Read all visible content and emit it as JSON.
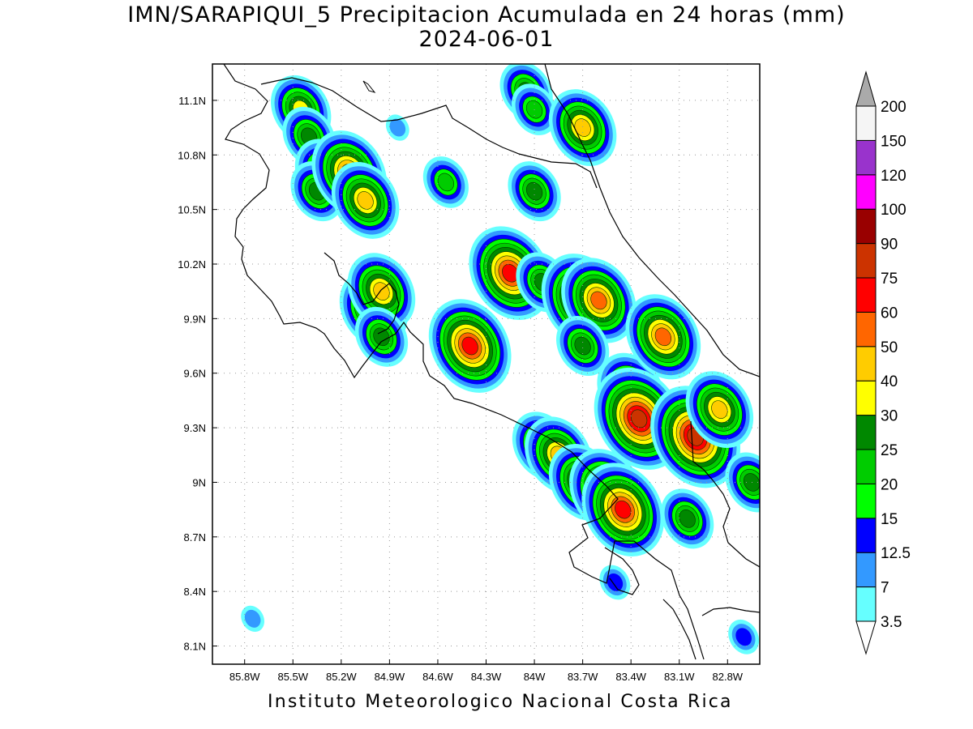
{
  "title": "IMN/SARAPIQUI_5 Precipitacion Acumulada en 24 horas (mm)",
  "date": "2024-06-01",
  "footer": "Instituto Meteorologico Nacional Costa Rica",
  "map": {
    "lon_range": [
      -86.0,
      -82.6
    ],
    "lat_range": [
      8.0,
      11.3
    ],
    "lat_ticks": [
      "11.1N",
      "10.8N",
      "10.5N",
      "10.2N",
      "9.9N",
      "9.6N",
      "9.3N",
      "9N",
      "8.7N",
      "8.4N",
      "8.1N"
    ],
    "lat_values": [
      11.1,
      10.8,
      10.5,
      10.2,
      9.9,
      9.6,
      9.3,
      9.0,
      8.7,
      8.4,
      8.1
    ],
    "lon_ticks": [
      "85.8W",
      "85.5W",
      "85.2W",
      "84.9W",
      "84.6W",
      "84.3W",
      "84W",
      "83.7W",
      "83.4W",
      "83.1W",
      "82.8W"
    ],
    "lon_values": [
      -85.8,
      -85.5,
      -85.2,
      -84.9,
      -84.6,
      -84.3,
      -84.0,
      -83.7,
      -83.4,
      -83.1,
      -82.8
    ],
    "grid": "dotted"
  },
  "legend": {
    "labels": [
      "3.5",
      "7",
      "12.5",
      "15",
      "20",
      "25",
      "30",
      "40",
      "50",
      "60",
      "75",
      "90",
      "100",
      "120",
      "150",
      "200"
    ],
    "colors": [
      "#ffffff",
      "#66ffff",
      "#3399ff",
      "#0000ff",
      "#00ff00",
      "#00cc00",
      "#008800",
      "#ffff00",
      "#ffcc00",
      "#ff6600",
      "#ff0000",
      "#cc3300",
      "#990000",
      "#ff00ff",
      "#9933cc",
      "#f5f5f5",
      "#aaaaaa"
    ]
  },
  "precip_cells": [
    {
      "lon": -85.45,
      "lat": 11.05,
      "mm": 30
    },
    {
      "lon": -85.4,
      "lat": 10.9,
      "mm": 25
    },
    {
      "lon": -85.3,
      "lat": 10.7,
      "mm": 30
    },
    {
      "lon": -85.35,
      "lat": 10.6,
      "mm": 25
    },
    {
      "lon": -85.15,
      "lat": 10.7,
      "mm": 50
    },
    {
      "lon": -85.05,
      "lat": 10.55,
      "mm": 40
    },
    {
      "lon": -84.85,
      "lat": 10.95,
      "mm": 7
    },
    {
      "lon": -84.05,
      "lat": 11.15,
      "mm": 25
    },
    {
      "lon": -84.0,
      "lat": 11.05,
      "mm": 20
    },
    {
      "lon": -84.0,
      "lat": 10.6,
      "mm": 25
    },
    {
      "lon": -83.7,
      "lat": 10.95,
      "mm": 40
    },
    {
      "lon": -84.55,
      "lat": 10.65,
      "mm": 20
    },
    {
      "lon": -85.0,
      "lat": 9.95,
      "mm": 40
    },
    {
      "lon": -84.95,
      "lat": 10.05,
      "mm": 40
    },
    {
      "lon": -84.95,
      "lat": 9.8,
      "mm": 25
    },
    {
      "lon": -84.4,
      "lat": 9.75,
      "mm": 60
    },
    {
      "lon": -84.15,
      "lat": 10.15,
      "mm": 60
    },
    {
      "lon": -83.95,
      "lat": 10.1,
      "mm": 25
    },
    {
      "lon": -83.7,
      "lat": 10.0,
      "mm": 60
    },
    {
      "lon": -83.6,
      "lat": 10.0,
      "mm": 50
    },
    {
      "lon": -83.7,
      "lat": 9.75,
      "mm": 25
    },
    {
      "lon": -83.4,
      "lat": 9.5,
      "mm": 40
    },
    {
      "lon": -83.35,
      "lat": 9.35,
      "mm": 75
    },
    {
      "lon": -83.2,
      "lat": 9.8,
      "mm": 50
    },
    {
      "lon": -83.0,
      "lat": 9.25,
      "mm": 75
    },
    {
      "lon": -82.85,
      "lat": 9.4,
      "mm": 40
    },
    {
      "lon": -82.65,
      "lat": 9.0,
      "mm": 25
    },
    {
      "lon": -83.95,
      "lat": 9.2,
      "mm": 30
    },
    {
      "lon": -83.85,
      "lat": 9.15,
      "mm": 40
    },
    {
      "lon": -83.7,
      "lat": 9.0,
      "mm": 40
    },
    {
      "lon": -83.55,
      "lat": 8.95,
      "mm": 50
    },
    {
      "lon": -83.45,
      "lat": 8.85,
      "mm": 60
    },
    {
      "lon": -83.05,
      "lat": 8.8,
      "mm": 25
    },
    {
      "lon": -83.5,
      "lat": 8.45,
      "mm": 12.5
    },
    {
      "lon": -82.7,
      "lat": 8.15,
      "mm": 12.5
    },
    {
      "lon": -85.75,
      "lat": 8.25,
      "mm": 7
    }
  ]
}
